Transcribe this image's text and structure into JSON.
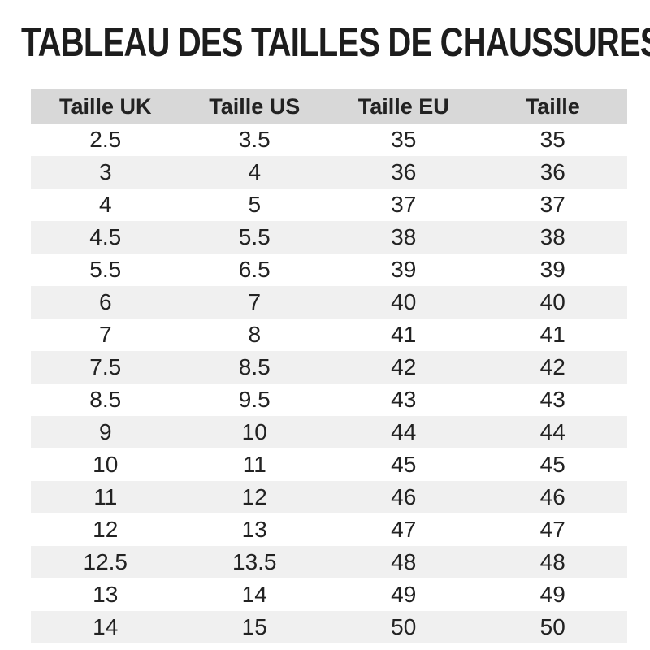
{
  "title": "TABLEAU DES TAILLES DE CHAUSSURES",
  "chart_data": {
    "type": "table",
    "title": "TABLEAU DES TAILLES DE CHAUSSURES",
    "columns": [
      "Taille UK",
      "Taille US",
      "Taille EU",
      "Taille"
    ],
    "rows": [
      [
        "2.5",
        "3.5",
        "35",
        "35"
      ],
      [
        "3",
        "4",
        "36",
        "36"
      ],
      [
        "4",
        "5",
        "37",
        "37"
      ],
      [
        "4.5",
        "5.5",
        "38",
        "38"
      ],
      [
        "5.5",
        "6.5",
        "39",
        "39"
      ],
      [
        "6",
        "7",
        "40",
        "40"
      ],
      [
        "7",
        "8",
        "41",
        "41"
      ],
      [
        "7.5",
        "8.5",
        "42",
        "42"
      ],
      [
        "8.5",
        "9.5",
        "43",
        "43"
      ],
      [
        "9",
        "10",
        "44",
        "44"
      ],
      [
        "10",
        "11",
        "45",
        "45"
      ],
      [
        "11",
        "12",
        "46",
        "46"
      ],
      [
        "12",
        "13",
        "47",
        "47"
      ],
      [
        "12.5",
        "13.5",
        "48",
        "48"
      ],
      [
        "13",
        "14",
        "49",
        "49"
      ],
      [
        "14",
        "15",
        "50",
        "50"
      ]
    ],
    "layout": {
      "zebra_striping": true,
      "first_data_row_bg": "white",
      "columns_equal_width": true
    }
  },
  "colors": {
    "header_bg": "#d8d8d8",
    "stripe_bg": "#f0f0f0",
    "text": "#222222",
    "title_color": "#1d1d1d",
    "background": "#ffffff"
  }
}
